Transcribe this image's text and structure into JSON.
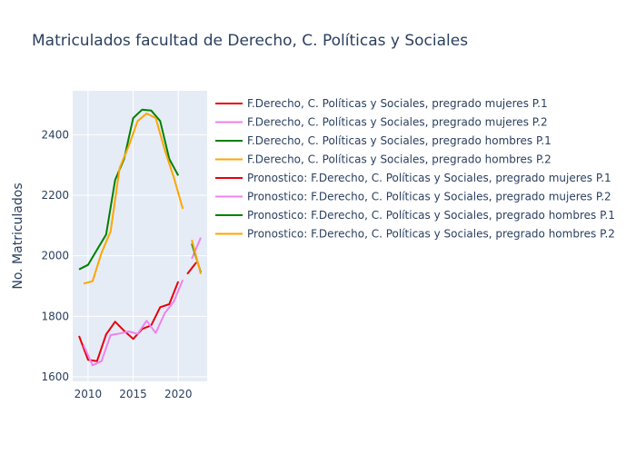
{
  "chart_data": {
    "type": "line",
    "title": "Matriculados facultad de Derecho, C. Políticas y Sociales",
    "xlabel": "",
    "ylabel": "No. Matriculados",
    "xlim": [
      2008.3,
      2023.2
    ],
    "ylim": [
      1585,
      2545
    ],
    "x_ticks": [
      2010,
      2015,
      2020
    ],
    "y_ticks": [
      1600,
      1800,
      2000,
      2200,
      2400
    ],
    "grid": true,
    "legend_position": "right",
    "series": [
      {
        "name": "F.Derecho, C. Políticas y Sociales, pregrado mujeres P.1",
        "color": "#e8000b",
        "x": [
          2009,
          2010,
          2011,
          2012,
          2013,
          2014,
          2015,
          2016,
          2017,
          2018,
          2019,
          2020
        ],
        "y": [
          1735,
          1656,
          1652,
          1740,
          1782,
          1752,
          1725,
          1758,
          1770,
          1830,
          1840,
          1915
        ]
      },
      {
        "name": "F.Derecho, C. Políticas y Sociales, pregrado mujeres P.2",
        "color": "#ee82ee",
        "x": [
          2009.5,
          2010.5,
          2011.5,
          2012.5,
          2013.5,
          2014.5,
          2015.5,
          2016.5,
          2017.5,
          2018.5,
          2019.5,
          2020.5
        ],
        "y": [
          1705,
          1638,
          1652,
          1738,
          1743,
          1750,
          1742,
          1785,
          1745,
          1810,
          1848,
          1920
        ]
      },
      {
        "name": "F.Derecho, C. Políticas y Sociales, pregrado hombres P.1",
        "color": "#008000",
        "x": [
          2009,
          2010,
          2011,
          2012,
          2013,
          2014,
          2015,
          2016,
          2017,
          2018,
          2019,
          2020
        ],
        "y": [
          1955,
          1970,
          2020,
          2070,
          2250,
          2320,
          2455,
          2483,
          2480,
          2445,
          2320,
          2265
        ]
      },
      {
        "name": "F.Derecho, C. Políticas y Sociales, pregrado hombres P.2",
        "color": "#ffa500",
        "x": [
          2009.5,
          2010.5,
          2011.5,
          2012.5,
          2013.5,
          2014.5,
          2015.5,
          2016.5,
          2017.5,
          2018.5,
          2019.5,
          2020.5
        ],
        "y": [
          1908,
          1916,
          2010,
          2080,
          2290,
          2362,
          2445,
          2470,
          2455,
          2350,
          2260,
          2155
        ]
      },
      {
        "name": "Pronostico: F.Derecho, C. Políticas y Sociales, pregrado mujeres P.1",
        "color": "#e8000b",
        "x": [
          2021,
          2022
        ],
        "y": [
          1940,
          1978
        ]
      },
      {
        "name": "Pronostico: F.Derecho, C. Políticas y Sociales, pregrado mujeres P.2",
        "color": "#ee82ee",
        "x": [
          2021.5,
          2022.5
        ],
        "y": [
          1990,
          2060
        ]
      },
      {
        "name": "Pronostico: F.Derecho, C. Políticas y Sociales, pregrado hombres P.1",
        "color": "#008000",
        "x": [
          2021.5,
          2022.5
        ],
        "y": [
          2040,
          1945
        ]
      },
      {
        "name": "Pronostico: F.Derecho, C. Políticas y Sociales, pregrado hombres P.2",
        "color": "#ffa500",
        "x": [
          2021.5,
          2022.5
        ],
        "y": [
          2052,
          1940
        ]
      }
    ]
  }
}
